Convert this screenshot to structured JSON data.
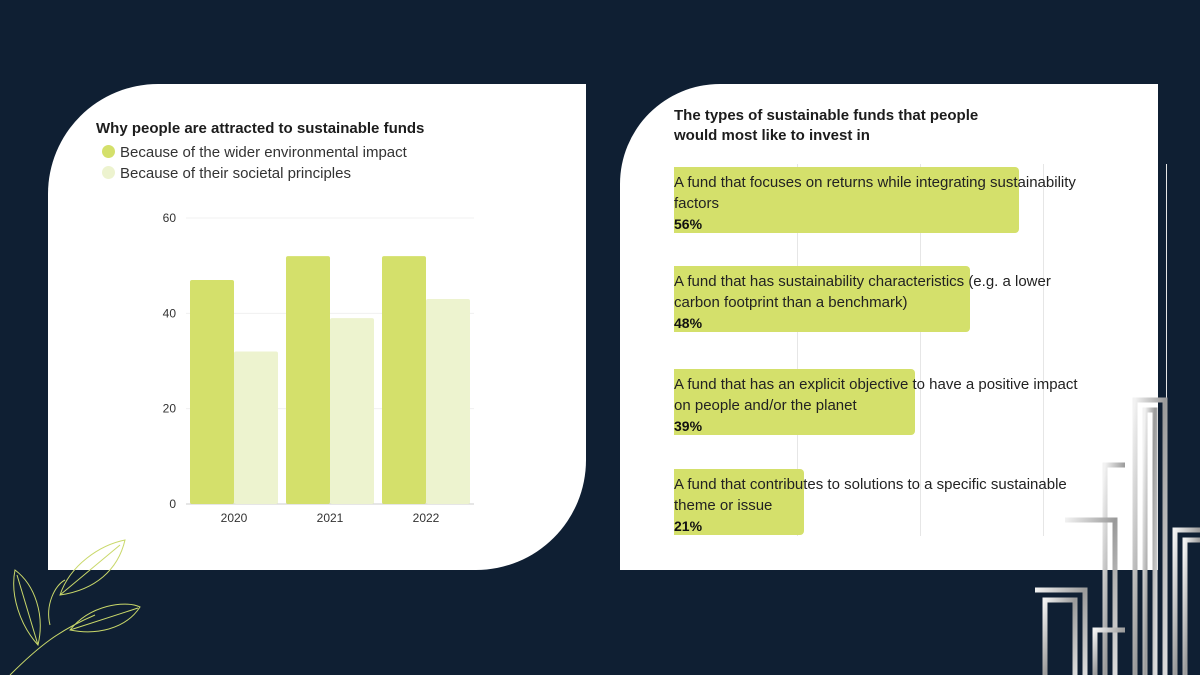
{
  "colors": {
    "background": "#0f1f33",
    "primary_green": "#d4e06b",
    "light_green": "#edf3cf",
    "hbar_green": "#d4e06b"
  },
  "chart_data": [
    {
      "type": "bar",
      "title": "Why people are attracted to sustainable funds",
      "categories": [
        "2020",
        "2021",
        "2022"
      ],
      "series": [
        {
          "name": "Because of the wider environmental impact",
          "values": [
            47,
            52,
            52
          ]
        },
        {
          "name": "Because of their societal principles",
          "values": [
            32,
            39,
            43
          ]
        }
      ],
      "yticks": [
        "0",
        "20",
        "40",
        "60"
      ],
      "ylim": [
        0,
        60
      ],
      "xlabel": "",
      "ylabel": ""
    },
    {
      "type": "bar",
      "orientation": "horizontal",
      "title": "The types of sustainable funds that people would most like to invest in",
      "categories": [
        "A fund that focuses on returns while integrating sustainability factors",
        "A fund that has sustainability characteristics (e.g. a lower carbon footprint than a benchmark)",
        "A fund that has an explicit objective to have a positive impact on people and/or the planet",
        "A fund that contributes to solutions to a specific sustainable theme or issue"
      ],
      "values": [
        56,
        48,
        39,
        21
      ],
      "labels": [
        "56%",
        "48%",
        "39%",
        "21%"
      ],
      "xlim": [
        0,
        60
      ]
    }
  ]
}
